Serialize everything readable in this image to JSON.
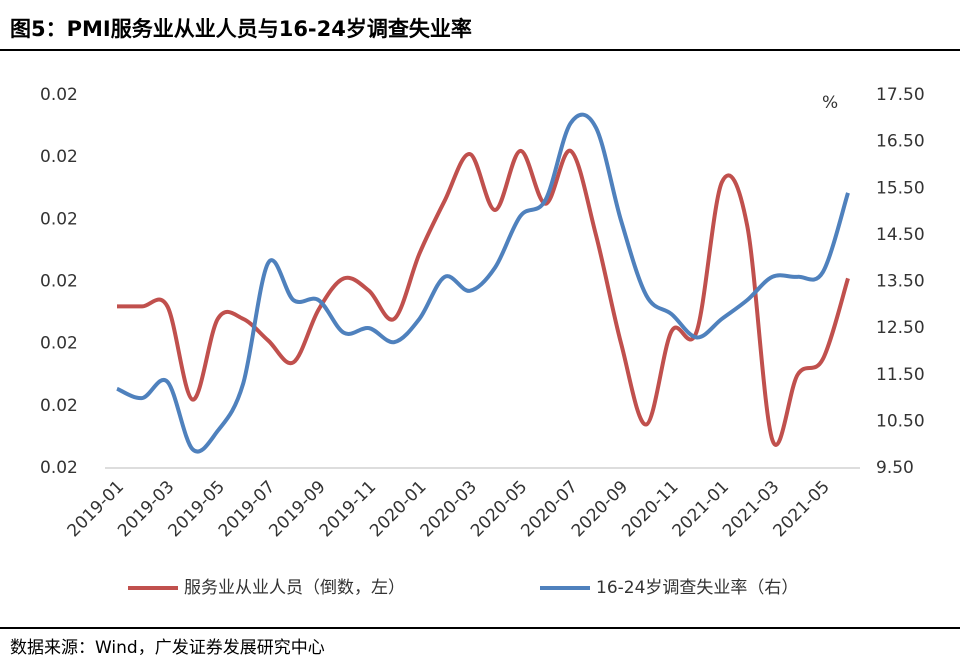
{
  "chart_data": {
    "type": "line",
    "title": "图5：PMI服务业从业人员与16-24岁调查失业率",
    "source": "数据来源：Wind，广发证券发展研究中心",
    "y2_unit": "%",
    "categories": [
      "2019-01",
      null,
      "2019-03",
      null,
      "2019-05",
      null,
      "2019-07",
      null,
      "2019-09",
      null,
      "2019-11",
      null,
      "2020-01",
      null,
      "2020-03",
      null,
      "2020-05",
      null,
      "2020-07",
      null,
      "2020-09",
      null,
      "2020-11",
      null,
      "2021-01",
      null,
      "2021-03",
      null,
      "2021-05",
      null
    ],
    "ylim": [
      0.02,
      0.0212
    ],
    "yticks": [
      {
        "value": 0.02,
        "label": "0.02"
      },
      {
        "value": 0.0202,
        "label": "0.02"
      },
      {
        "value": 0.0204,
        "label": "0.02"
      },
      {
        "value": 0.0206,
        "label": "0.02"
      },
      {
        "value": 0.0208,
        "label": "0.02"
      },
      {
        "value": 0.021,
        "label": "0.02"
      },
      {
        "value": 0.0212,
        "label": "0.02"
      }
    ],
    "y2lim": [
      9.5,
      17.5
    ],
    "y2ticks": [
      {
        "value": 9.5,
        "label": "9.50"
      },
      {
        "value": 10.5,
        "label": "10.50"
      },
      {
        "value": 11.5,
        "label": "11.50"
      },
      {
        "value": 12.5,
        "label": "12.50"
      },
      {
        "value": 13.5,
        "label": "13.50"
      },
      {
        "value": 14.5,
        "label": "14.50"
      },
      {
        "value": 15.5,
        "label": "15.50"
      },
      {
        "value": 16.5,
        "label": "16.50"
      },
      {
        "value": 17.5,
        "label": "17.50"
      }
    ],
    "legend": "bottom",
    "series": [
      {
        "name": "服务业从业人员（倒数，左）",
        "color": "#c0504d",
        "axis": "y",
        "values": [
          0.02052,
          0.02052,
          0.02052,
          0.02022,
          0.02048,
          0.02048,
          0.02041,
          0.02034,
          0.02051,
          0.02061,
          0.02057,
          0.02048,
          0.02069,
          0.02086,
          0.02101,
          0.02083,
          0.02102,
          0.02085,
          0.02102,
          0.02075,
          0.0204,
          0.02014,
          0.02044,
          0.02044,
          0.02092,
          0.02078,
          0.02009,
          0.0203,
          0.02035,
          0.02061
        ]
      },
      {
        "name": "16-24岁调查失业率（右）",
        "color": "#4f81bd",
        "axis": "y2",
        "values": [
          11.2,
          11.0,
          11.35,
          9.9,
          10.3,
          11.3,
          13.9,
          13.1,
          13.1,
          12.4,
          12.5,
          12.2,
          12.7,
          13.6,
          13.3,
          13.8,
          14.9,
          15.25,
          16.9,
          16.8,
          14.8,
          13.2,
          12.8,
          12.3,
          12.7,
          13.1,
          13.6,
          13.6,
          13.7,
          15.4
        ]
      }
    ]
  }
}
